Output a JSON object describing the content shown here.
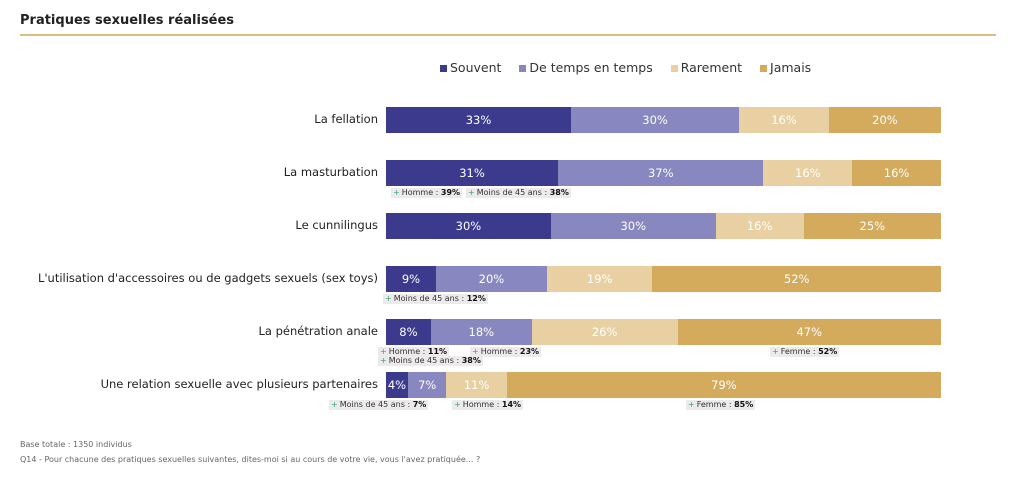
{
  "title": "Pratiques sexuelles réalisées",
  "chart_data": {
    "type": "bar",
    "orientation": "horizontal-stacked-100",
    "title": "Pratiques sexuelles réalisées",
    "series": [
      {
        "name": "Souvent",
        "color": "#3b3a8c"
      },
      {
        "name": "De temps en temps",
        "color": "#8887bf"
      },
      {
        "name": "Rarement",
        "color": "#e8d0a2"
      },
      {
        "name": "Jamais",
        "color": "#d4aa5d"
      }
    ],
    "legend_position": "top",
    "categories": [
      {
        "label": "La fellation",
        "values": [
          33,
          30,
          16,
          20
        ],
        "annotations": []
      },
      {
        "label": "La masturbation",
        "values": [
          31,
          37,
          16,
          16
        ],
        "annotations": [
          {
            "text": "Homme : ",
            "value": "39%"
          },
          {
            "text": "Moins de 45 ans : ",
            "value": "38%"
          }
        ]
      },
      {
        "label": "Le cunnilingus",
        "values": [
          30,
          30,
          16,
          25
        ],
        "annotations": []
      },
      {
        "label": "L'utilisation d'accessoires ou de gadgets sexuels (sex toys)",
        "values": [
          9,
          20,
          19,
          52
        ],
        "annotations": [
          {
            "text": "Moins de 45 ans : ",
            "value": "12%"
          }
        ]
      },
      {
        "label": "La pénétration anale",
        "values": [
          8,
          18,
          26,
          47
        ],
        "annotations": [
          {
            "text": "Homme : ",
            "value": "11%"
          },
          {
            "text": "Moins de 45 ans : ",
            "value": "38%"
          },
          {
            "text": "Homme : ",
            "value": "23%"
          },
          {
            "text": "Femme : ",
            "value": "52%"
          }
        ]
      },
      {
        "label": "Une relation sexuelle avec plusieurs partenaires",
        "values": [
          4,
          7,
          11,
          79
        ],
        "annotations": [
          {
            "text": "Moins de 45 ans : ",
            "value": "7%"
          },
          {
            "text": "Homme : ",
            "value": "14%"
          },
          {
            "text": "Femme : ",
            "value": "85%"
          }
        ]
      }
    ]
  },
  "footer": {
    "base": "Base totale : 1350 individus",
    "question": "Q14 - Pour chacune des pratiques sexuelles suivantes, dites-moi si au cours de votre vie, vous l'avez pratiquée... ?"
  }
}
